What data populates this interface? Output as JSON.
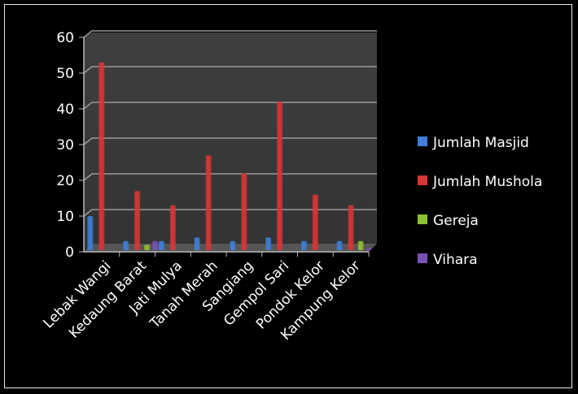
{
  "chart_data": {
    "type": "bar",
    "title": "",
    "xlabel": "",
    "ylabel": "",
    "categories": [
      "Lebak Wangi",
      "Kedaung Barat",
      "Jati Mulya",
      "Tanah Merah",
      "Sangiang",
      "Gempol Sari",
      "Pondok Kelor",
      "Kampung Kelor"
    ],
    "series": [
      {
        "name": "Jumlah Masjid",
        "color": "#3d7fd9",
        "values": [
          10,
          3,
          3,
          4,
          3,
          4,
          3,
          3
        ]
      },
      {
        "name": "Jumlah Mushola",
        "color": "#d93535",
        "values": [
          53,
          17,
          13,
          27,
          22,
          42,
          16,
          13
        ]
      },
      {
        "name": "Gereja",
        "color": "#8fc031",
        "values": [
          0,
          2,
          0,
          0,
          0,
          0,
          0,
          3
        ]
      },
      {
        "name": "Vihara",
        "color": "#7a4fb8",
        "values": [
          0,
          3,
          0,
          0,
          0,
          0,
          0,
          1
        ]
      }
    ],
    "yticks": [
      0,
      10,
      20,
      30,
      40,
      50,
      60
    ],
    "ylim": [
      0,
      60
    ],
    "grid": true,
    "legend": "right",
    "plot_background": "#3a3a3a"
  }
}
